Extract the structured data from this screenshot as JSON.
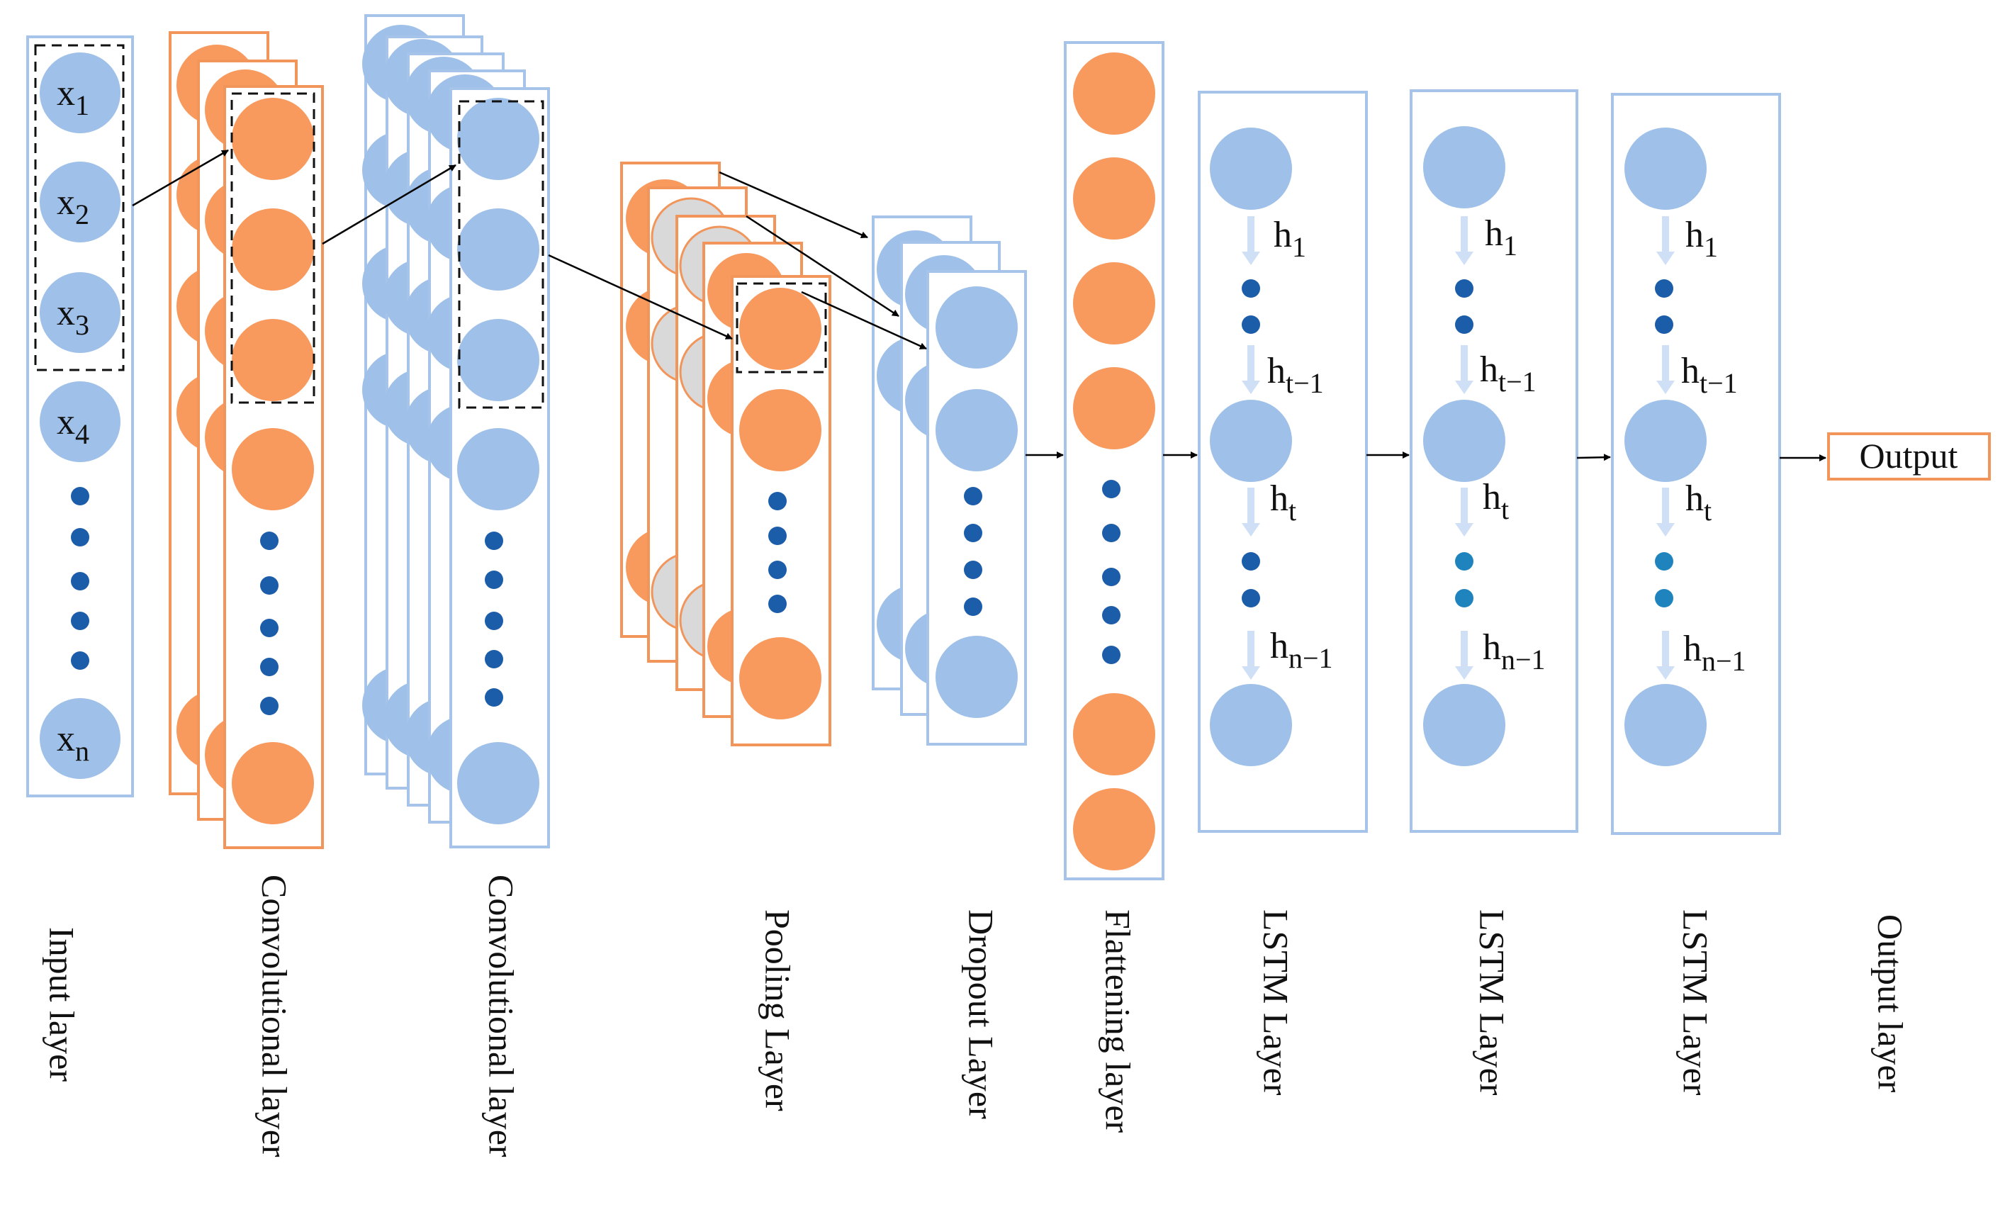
{
  "colors": {
    "blue_fill": "#9FC0E8",
    "blue_stroke": "#A6C4EA",
    "orange_fill": "#F8995E",
    "orange_stroke": "#F2955B",
    "dot_dark": "#1C5DAA",
    "dot_teal": "#1F84BE",
    "grey_fill": "#D9D9D9",
    "arrow": "#000000",
    "h_arrow": "#CFE0F6"
  },
  "input": {
    "nodes": [
      {
        "base": "x",
        "sub": "1"
      },
      {
        "base": "x",
        "sub": "2"
      },
      {
        "base": "x",
        "sub": "3"
      },
      {
        "base": "x",
        "sub": "4"
      },
      {
        "base": "x",
        "sub": "n"
      }
    ]
  },
  "lstm": {
    "labels": [
      {
        "base": "h",
        "sub": "1"
      },
      {
        "base": "h",
        "sub": "t−1"
      },
      {
        "base": "h",
        "sub": "t"
      },
      {
        "base": "h",
        "sub": "n−1"
      }
    ]
  },
  "output": {
    "label": "Output"
  },
  "layer_labels": [
    "Input layer",
    "Convolutional layer",
    "Convolutional layer",
    "Pooling Layer",
    "Dropout Layer",
    "Flattening layer",
    "LSTM Layer",
    "LSTM Layer",
    "LSTM Layer",
    "Output layer"
  ]
}
